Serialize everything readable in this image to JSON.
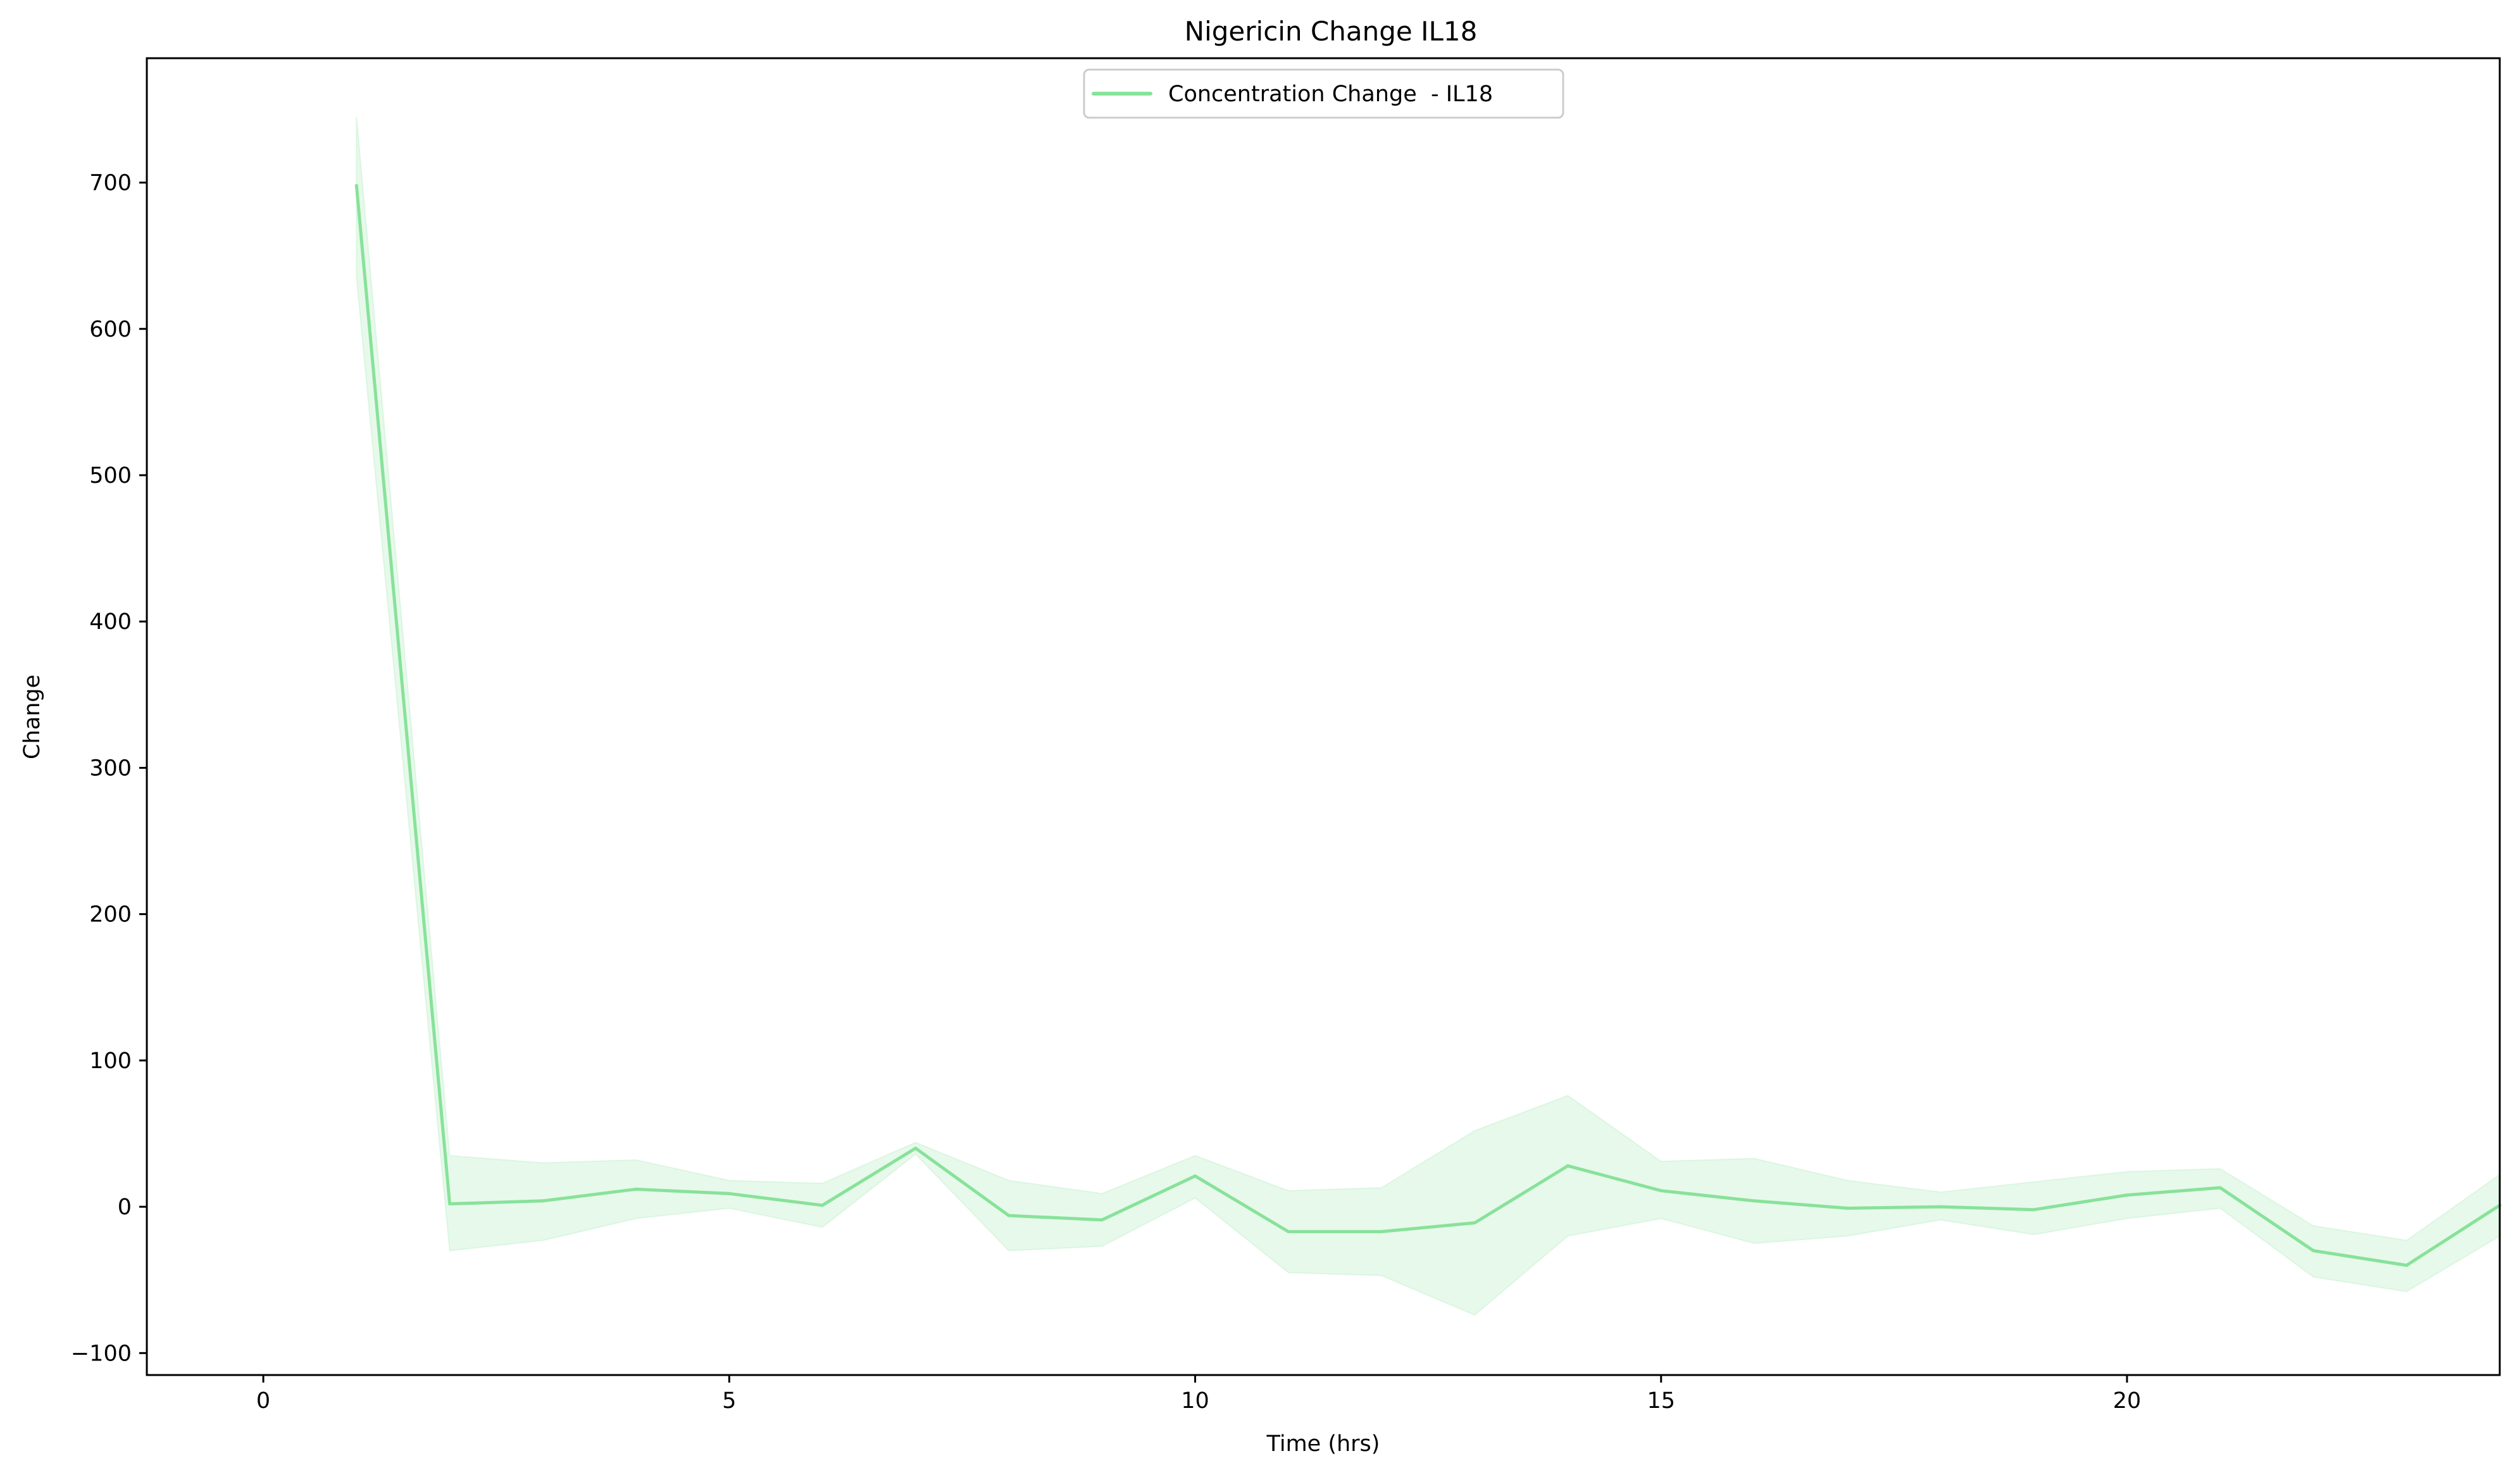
{
  "chart_data": {
    "type": "line",
    "title": "Nigericin Change IL18",
    "xlabel": "Time (hrs)",
    "ylabel": "Change",
    "xlim": [
      -1.25,
      24
    ],
    "ylim": [
      -115,
      785
    ],
    "xticks": [
      0,
      5,
      10,
      15,
      20
    ],
    "xtick_labels": [
      "0",
      "5",
      "10",
      "15",
      "20"
    ],
    "yticks": [
      -100,
      0,
      100,
      200,
      300,
      400,
      500,
      600,
      700
    ],
    "ytick_labels": [
      "−100",
      "0",
      "100",
      "200",
      "300",
      "400",
      "500",
      "600",
      "700"
    ],
    "grid": false,
    "legend_position": "top-center",
    "series": [
      {
        "name": "Concentration Change  - IL18",
        "color": "#88e29a",
        "band_color": "#88e29a",
        "x": [
          1,
          2,
          3,
          4,
          5,
          6,
          7,
          8,
          9,
          10,
          11,
          12,
          13,
          14,
          15,
          16,
          17,
          18,
          19,
          20,
          21,
          22,
          23,
          24
        ],
        "y": [
          698,
          2,
          4,
          12,
          9,
          1,
          40,
          -6,
          -9,
          21,
          -17,
          -17,
          -11,
          28,
          11,
          4,
          -1,
          0,
          -2,
          8,
          13,
          -30,
          -40,
          1
        ],
        "upper": [
          745,
          35,
          30,
          32,
          18,
          16,
          44,
          18,
          9,
          35,
          11,
          13,
          52,
          76,
          31,
          33,
          18,
          10,
          17,
          24,
          26,
          -13,
          -23,
          22
        ],
        "lower": [
          635,
          -30,
          -23,
          -8,
          -1,
          -14,
          36,
          -30,
          -27,
          6,
          -45,
          -47,
          -74,
          -20,
          -8,
          -25,
          -20,
          -9,
          -19,
          -8,
          -1,
          -48,
          -58,
          -20
        ]
      }
    ]
  }
}
